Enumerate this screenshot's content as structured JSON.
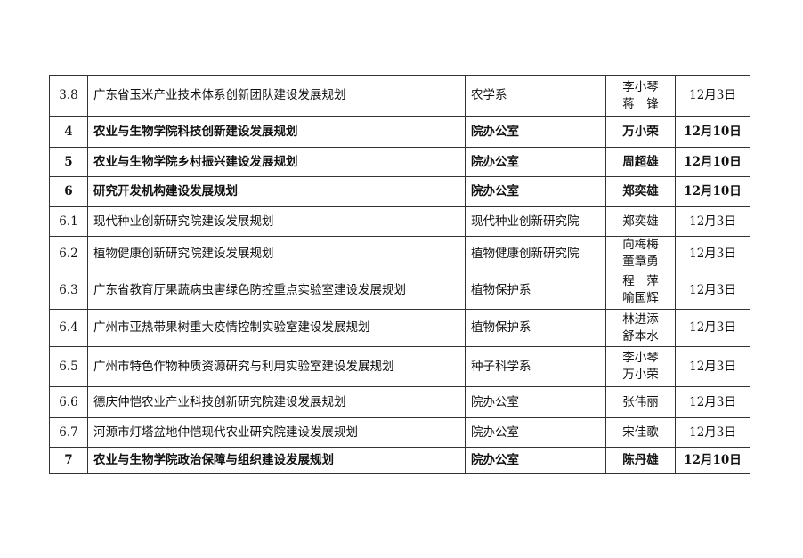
{
  "rows": [
    {
      "num": "3.8",
      "title": "广东省玉米产业技术体系创新团队建设发展规划",
      "dept": "农学系",
      "persons": [
        "李小琴",
        "蒋　锋"
      ],
      "date": "12月3日",
      "bold": false
    },
    {
      "num": "4",
      "title": "农业与生物学院科技创新建设发展规划",
      "dept": "院办公室",
      "persons": [
        "万小荣"
      ],
      "date": "12月10日",
      "bold": true
    },
    {
      "num": "5",
      "title": "农业与生物学院乡村振兴建设发展规划",
      "dept": "院办公室",
      "persons": [
        "周超雄"
      ],
      "date": "12月10日",
      "bold": true
    },
    {
      "num": "6",
      "title": "研究开发机构建设发展规划",
      "dept": "院办公室",
      "persons": [
        "郑奕雄"
      ],
      "date": "12月10日",
      "bold": true
    },
    {
      "num": "6.1",
      "title": "现代种业创新研究院建设发展规划",
      "dept": "现代种业创新研究院",
      "persons": [
        "郑奕雄"
      ],
      "date": "12月3日",
      "bold": false
    },
    {
      "num": "6.2",
      "title": "植物健康创新研究院建设发展规划",
      "dept": "植物健康创新研究院",
      "persons": [
        "向梅梅",
        "董章勇"
      ],
      "date": "12月3日",
      "bold": false
    },
    {
      "num": "6.3",
      "title": "广东省教育厅果蔬病虫害绿色防控重点实验室建设发展规划",
      "dept": "植物保护系",
      "persons": [
        "程　萍",
        "喻国辉"
      ],
      "date": "12月3日",
      "bold": false
    },
    {
      "num": "6.4",
      "title": "广州市亚热带果树重大疫情控制实验室建设发展规划",
      "dept": "植物保护系",
      "persons": [
        "林进添",
        "舒本水"
      ],
      "date": "12月3日",
      "bold": false
    },
    {
      "num": "6.5",
      "title": "广州市特色作物种质资源研究与利用实验室建设发展规划",
      "dept": "种子科学系",
      "persons": [
        "李小琴",
        "万小荣"
      ],
      "date": "12月3日",
      "bold": false
    },
    {
      "num": "6.6",
      "title": "德庆仲恺农业产业科技创新研究院建设发展规划",
      "dept": "院办公室",
      "persons": [
        "张伟丽"
      ],
      "date": "12月3日",
      "bold": false
    },
    {
      "num": "6.7",
      "title": "河源市灯塔盆地仲恺现代农业研究院建设发展规划",
      "dept": "院办公室",
      "persons": [
        "宋佳歌"
      ],
      "date": "12月3日",
      "bold": false
    },
    {
      "num": "7",
      "title": "农业与生物学院政治保障与组织建设发展规划",
      "dept": "院办公室",
      "persons": [
        "陈丹雄"
      ],
      "date": "12月10日",
      "bold": true
    }
  ]
}
